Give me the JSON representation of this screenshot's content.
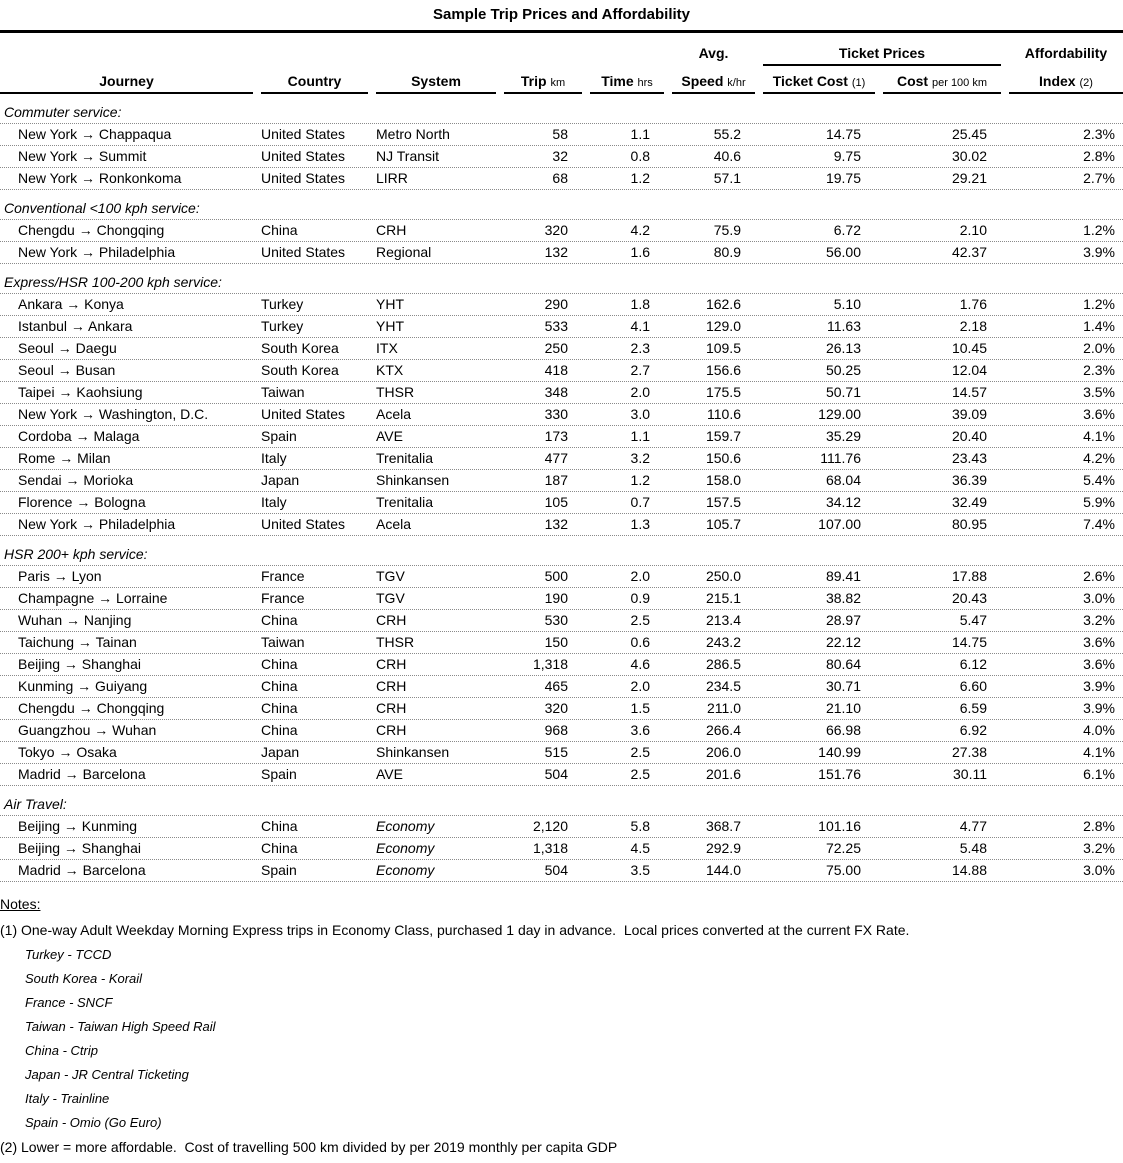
{
  "title": "Sample Trip Prices and Affordability",
  "header": {
    "journey": "Journey",
    "country": "Country",
    "system": "System",
    "trip": "Trip",
    "trip_unit": "km",
    "time": "Time",
    "time_unit": "hrs",
    "avg": "Avg.",
    "speed": "Speed",
    "speed_unit": "k/hr",
    "ticket_prices": "Ticket Prices",
    "ticket_cost": "Ticket Cost",
    "ticket_cost_note": "(1)",
    "cost": "Cost",
    "cost_unit": "per 100 km",
    "affordability": "Affordability",
    "index": "Index",
    "index_note": "(2)"
  },
  "sections": [
    {
      "label": "Commuter service:",
      "rows": [
        {
          "journey": "New York → Chappaqua",
          "country": "United States",
          "system": "Metro North",
          "trip": "58",
          "time": "1.1",
          "speed": "55.2",
          "ticket_cost": "14.75",
          "cost_per_100km": "25.45",
          "index": "2.3%"
        },
        {
          "journey": "New York → Summit",
          "country": "United States",
          "system": "NJ Transit",
          "trip": "32",
          "time": "0.8",
          "speed": "40.6",
          "ticket_cost": "9.75",
          "cost_per_100km": "30.02",
          "index": "2.8%"
        },
        {
          "journey": "New York → Ronkonkoma",
          "country": "United States",
          "system": "LIRR",
          "trip": "68",
          "time": "1.2",
          "speed": "57.1",
          "ticket_cost": "19.75",
          "cost_per_100km": "29.21",
          "index": "2.7%"
        }
      ]
    },
    {
      "label": "Conventional <100 kph service:",
      "rows": [
        {
          "journey": "Chengdu → Chongqing",
          "country": "China",
          "system": "CRH",
          "trip": "320",
          "time": "4.2",
          "speed": "75.9",
          "ticket_cost": "6.72",
          "cost_per_100km": "2.10",
          "index": "1.2%"
        },
        {
          "journey": "New York → Philadelphia",
          "country": "United States",
          "system": "Regional",
          "trip": "132",
          "time": "1.6",
          "speed": "80.9",
          "ticket_cost": "56.00",
          "cost_per_100km": "42.37",
          "index": "3.9%"
        }
      ]
    },
    {
      "label": "Express/HSR 100-200 kph service:",
      "rows": [
        {
          "journey": "Ankara → Konya",
          "country": "Turkey",
          "system": "YHT",
          "trip": "290",
          "time": "1.8",
          "speed": "162.6",
          "ticket_cost": "5.10",
          "cost_per_100km": "1.76",
          "index": "1.2%"
        },
        {
          "journey": "Istanbul → Ankara",
          "country": "Turkey",
          "system": "YHT",
          "trip": "533",
          "time": "4.1",
          "speed": "129.0",
          "ticket_cost": "11.63",
          "cost_per_100km": "2.18",
          "index": "1.4%"
        },
        {
          "journey": "Seoul → Daegu",
          "country": "South Korea",
          "system": "ITX",
          "trip": "250",
          "time": "2.3",
          "speed": "109.5",
          "ticket_cost": "26.13",
          "cost_per_100km": "10.45",
          "index": "2.0%"
        },
        {
          "journey": "Seoul → Busan",
          "country": "South Korea",
          "system": "KTX",
          "trip": "418",
          "time": "2.7",
          "speed": "156.6",
          "ticket_cost": "50.25",
          "cost_per_100km": "12.04",
          "index": "2.3%"
        },
        {
          "journey": "Taipei → Kaohsiung",
          "country": "Taiwan",
          "system": "THSR",
          "trip": "348",
          "time": "2.0",
          "speed": "175.5",
          "ticket_cost": "50.71",
          "cost_per_100km": "14.57",
          "index": "3.5%"
        },
        {
          "journey": "New York → Washington, D.C.",
          "country": "United States",
          "system": "Acela",
          "trip": "330",
          "time": "3.0",
          "speed": "110.6",
          "ticket_cost": "129.00",
          "cost_per_100km": "39.09",
          "index": "3.6%"
        },
        {
          "journey": "Cordoba → Malaga",
          "country": "Spain",
          "system": "AVE",
          "trip": "173",
          "time": "1.1",
          "speed": "159.7",
          "ticket_cost": "35.29",
          "cost_per_100km": "20.40",
          "index": "4.1%"
        },
        {
          "journey": "Rome → Milan",
          "country": "Italy",
          "system": "Trenitalia",
          "trip": "477",
          "time": "3.2",
          "speed": "150.6",
          "ticket_cost": "111.76",
          "cost_per_100km": "23.43",
          "index": "4.2%"
        },
        {
          "journey": "Sendai → Morioka",
          "country": "Japan",
          "system": "Shinkansen",
          "trip": "187",
          "time": "1.2",
          "speed": "158.0",
          "ticket_cost": "68.04",
          "cost_per_100km": "36.39",
          "index": "5.4%"
        },
        {
          "journey": "Florence → Bologna",
          "country": "Italy",
          "system": "Trenitalia",
          "trip": "105",
          "time": "0.7",
          "speed": "157.5",
          "ticket_cost": "34.12",
          "cost_per_100km": "32.49",
          "index": "5.9%"
        },
        {
          "journey": "New York → Philadelphia",
          "country": "United States",
          "system": "Acela",
          "trip": "132",
          "time": "1.3",
          "speed": "105.7",
          "ticket_cost": "107.00",
          "cost_per_100km": "80.95",
          "index": "7.4%"
        }
      ]
    },
    {
      "label": "HSR 200+ kph service:",
      "rows": [
        {
          "journey": "Paris → Lyon",
          "country": "France",
          "system": "TGV",
          "trip": "500",
          "time": "2.0",
          "speed": "250.0",
          "ticket_cost": "89.41",
          "cost_per_100km": "17.88",
          "index": "2.6%"
        },
        {
          "journey": "Champagne → Lorraine",
          "country": "France",
          "system": "TGV",
          "trip": "190",
          "time": "0.9",
          "speed": "215.1",
          "ticket_cost": "38.82",
          "cost_per_100km": "20.43",
          "index": "3.0%"
        },
        {
          "journey": "Wuhan → Nanjing",
          "country": "China",
          "system": "CRH",
          "trip": "530",
          "time": "2.5",
          "speed": "213.4",
          "ticket_cost": "28.97",
          "cost_per_100km": "5.47",
          "index": "3.2%"
        },
        {
          "journey": "Taichung → Tainan",
          "country": "Taiwan",
          "system": "THSR",
          "trip": "150",
          "time": "0.6",
          "speed": "243.2",
          "ticket_cost": "22.12",
          "cost_per_100km": "14.75",
          "index": "3.6%"
        },
        {
          "journey": "Beijing → Shanghai",
          "country": "China",
          "system": "CRH",
          "trip": "1,318",
          "time": "4.6",
          "speed": "286.5",
          "ticket_cost": "80.64",
          "cost_per_100km": "6.12",
          "index": "3.6%"
        },
        {
          "journey": "Kunming → Guiyang",
          "country": "China",
          "system": "CRH",
          "trip": "465",
          "time": "2.0",
          "speed": "234.5",
          "ticket_cost": "30.71",
          "cost_per_100km": "6.60",
          "index": "3.9%"
        },
        {
          "journey": "Chengdu → Chongqing",
          "country": "China",
          "system": "CRH",
          "trip": "320",
          "time": "1.5",
          "speed": "211.0",
          "ticket_cost": "21.10",
          "cost_per_100km": "6.59",
          "index": "3.9%"
        },
        {
          "journey": "Guangzhou → Wuhan",
          "country": "China",
          "system": "CRH",
          "trip": "968",
          "time": "3.6",
          "speed": "266.4",
          "ticket_cost": "66.98",
          "cost_per_100km": "6.92",
          "index": "4.0%"
        },
        {
          "journey": "Tokyo → Osaka",
          "country": "Japan",
          "system": "Shinkansen",
          "trip": "515",
          "time": "2.5",
          "speed": "206.0",
          "ticket_cost": "140.99",
          "cost_per_100km": "27.38",
          "index": "4.1%"
        },
        {
          "journey": "Madrid → Barcelona",
          "country": "Spain",
          "system": "AVE",
          "trip": "504",
          "time": "2.5",
          "speed": "201.6",
          "ticket_cost": "151.76",
          "cost_per_100km": "30.11",
          "index": "6.1%"
        }
      ]
    },
    {
      "label": "Air Travel:",
      "rows": [
        {
          "journey": "Beijing → Kunming",
          "country": "China",
          "system": "Economy",
          "system_italic": true,
          "trip": "2,120",
          "time": "5.8",
          "speed": "368.7",
          "ticket_cost": "101.16",
          "cost_per_100km": "4.77",
          "index": "2.8%"
        },
        {
          "journey": "Beijing → Shanghai",
          "country": "China",
          "system": "Economy",
          "system_italic": true,
          "trip": "1,318",
          "time": "4.5",
          "speed": "292.9",
          "ticket_cost": "72.25",
          "cost_per_100km": "5.48",
          "index": "3.2%"
        },
        {
          "journey": "Madrid → Barcelona",
          "country": "Spain",
          "system": "Economy",
          "system_italic": true,
          "trip": "504",
          "time": "3.5",
          "speed": "144.0",
          "ticket_cost": "75.00",
          "cost_per_100km": "14.88",
          "index": "3.0%"
        }
      ]
    }
  ],
  "notes": {
    "heading": "Notes:",
    "note1": "(1) One-way Adult Weekday Morning Express trips in Economy Class, purchased 1 day in advance.  Local prices converted at the current FX Rate.",
    "vendors": [
      "Turkey - TCCD",
      "South Korea - Korail",
      "France - SNCF",
      "Taiwan - Taiwan High Speed Rail",
      "China - Ctrip",
      "Japan - JR Central Ticketing",
      "Italy - Trainline",
      "Spain - Omio (Go Euro)"
    ],
    "note2": "(2) Lower = more affordable.  Cost of travelling 500 km divided by per 2019 monthly per capita GDP"
  }
}
